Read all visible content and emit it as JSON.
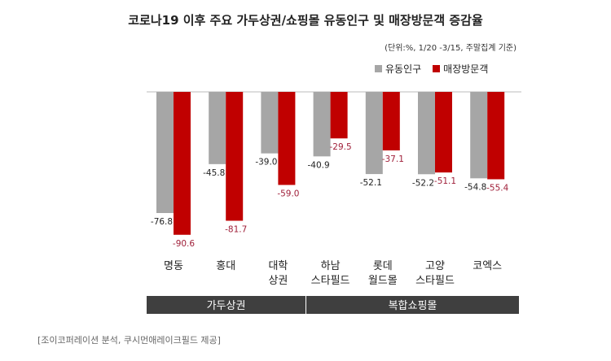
{
  "chart_data": {
    "type": "bar",
    "title": "코로나19 이후 주요 가두상권/쇼핑몰 유동인구 및 매장방문객 증감율",
    "subtitle": "(단위:%, 1/20 -3/15, 주말집계 기준)",
    "categories": [
      "명동",
      "홍대",
      "대학\n상권",
      "하남\n스타필드",
      "롯데\n월드몰",
      "고양\n스타필드",
      "코엑스"
    ],
    "series": [
      {
        "name": "유동인구",
        "color": "#a6a6a6",
        "label_color": "#222222",
        "values": [
          -76.8,
          -45.8,
          -39.0,
          -40.9,
          -52.1,
          -52.2,
          -54.8
        ]
      },
      {
        "name": "매장방문객",
        "color": "#c00000",
        "label_color": "#a0203a",
        "values": [
          -90.6,
          -81.7,
          -59.0,
          -29.5,
          -37.1,
          -51.1,
          -55.4
        ]
      }
    ],
    "value_labels": {
      "s0": [
        "-76.8",
        "-45.8",
        "-39.0",
        "-40.9",
        "-52.1",
        "-52.2",
        "-54.8"
      ],
      "s1": [
        "-90.6",
        "-81.7",
        "-59.0",
        "-29.5",
        "-37.1",
        "-51.1",
        "-55.4"
      ]
    },
    "groups": [
      {
        "label": "가두상권",
        "from": 0,
        "to": 2
      },
      {
        "label": "복합쇼핑몰",
        "from": 3,
        "to": 6
      }
    ],
    "ylim": [
      -100,
      0
    ],
    "grid": false,
    "legend": "top-right"
  },
  "source": "[조이코퍼레이션 분석, 쿠시먼애레이크필드 제공]",
  "colors": {
    "group_band": "#3f3f3f",
    "baseline": "#bbbbbb"
  }
}
